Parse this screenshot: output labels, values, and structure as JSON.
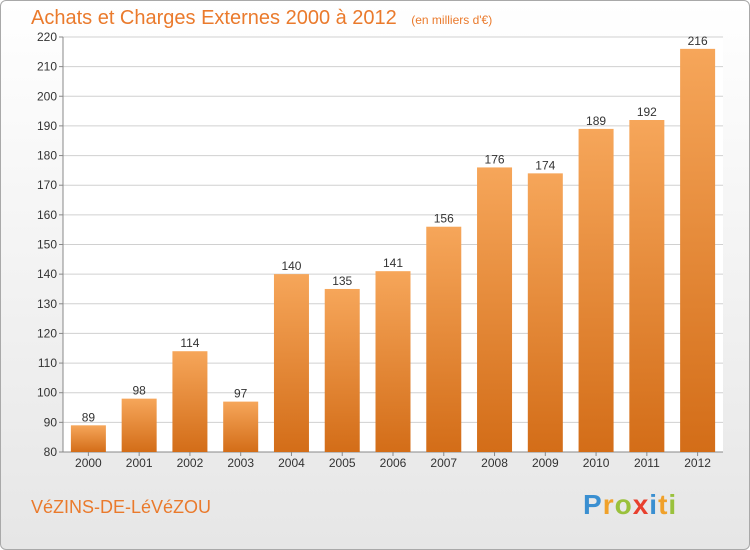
{
  "title": "Achats et Charges Externes 2000 à 2012",
  "subtitle": "(en milliers d'€)",
  "place": "VéZINS-DE-LéVéZOU",
  "logo": {
    "text": "Proxiti",
    "letters": [
      {
        "ch": "P",
        "color": "#3a8fd1"
      },
      {
        "ch": "r",
        "color": "#f0a12a"
      },
      {
        "ch": "o",
        "color": "#9ac13c"
      },
      {
        "ch": "x",
        "color": "#e8402e"
      },
      {
        "ch": "i",
        "color": "#3a8fd1"
      },
      {
        "ch": "t",
        "color": "#f0a12a"
      },
      {
        "ch": "i",
        "color": "#9ac13c"
      }
    ]
  },
  "colors": {
    "accent": "#ea7a2c",
    "bar_top": "#f6a65a",
    "bar_bottom": "#d36d18",
    "grid": "#d0d0d0",
    "axis_text": "#333333"
  },
  "chart_data": {
    "type": "bar",
    "categories": [
      "2000",
      "2001",
      "2002",
      "2003",
      "2004",
      "2005",
      "2006",
      "2007",
      "2008",
      "2009",
      "2010",
      "2011",
      "2012"
    ],
    "values": [
      89,
      98,
      114,
      97,
      140,
      135,
      141,
      156,
      176,
      174,
      189,
      192,
      216
    ],
    "ylim": [
      80,
      220
    ],
    "yticks": [
      80,
      90,
      100,
      110,
      120,
      130,
      140,
      150,
      160,
      170,
      180,
      190,
      200,
      210,
      220
    ],
    "grid": true,
    "legend": false
  }
}
